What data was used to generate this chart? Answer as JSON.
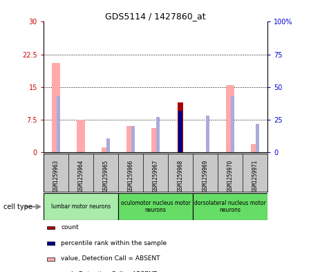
{
  "title": "GDS5114 / 1427860_at",
  "samples": [
    "GSM1259963",
    "GSM1259964",
    "GSM1259965",
    "GSM1259966",
    "GSM1259967",
    "GSM1259968",
    "GSM1259969",
    "GSM1259970",
    "GSM1259971"
  ],
  "value_absent": [
    20.5,
    7.5,
    1.2,
    6.0,
    5.5,
    null,
    null,
    15.5,
    2.0
  ],
  "rank_absent_pct": [
    43.0,
    null,
    10.5,
    20.0,
    27.0,
    null,
    28.0,
    43.0,
    22.0
  ],
  "count_value": [
    null,
    null,
    null,
    null,
    null,
    11.5,
    null,
    null,
    null
  ],
  "percentile_pct": [
    null,
    null,
    null,
    null,
    null,
    32.0,
    null,
    null,
    null
  ],
  "ylim_left": [
    0,
    30
  ],
  "ylim_right": [
    0,
    100
  ],
  "yticks_left": [
    0,
    7.5,
    15,
    22.5,
    30
  ],
  "yticks_right": [
    0,
    25,
    50,
    75,
    100
  ],
  "ytick_labels_left": [
    "0",
    "7.5",
    "15",
    "22.5",
    "30"
  ],
  "ytick_labels_right": [
    "0",
    "25",
    "50",
    "75",
    "100%"
  ],
  "cell_groups": [
    {
      "label": "lumbar motor neurons",
      "start": 0,
      "end": 3,
      "color": "#aaeaaa"
    },
    {
      "label": "oculomotor nucleus motor\nneurons",
      "start": 3,
      "end": 6,
      "color": "#66dd66"
    },
    {
      "label": "dorsolateral nucleus motor\nneurons",
      "start": 6,
      "end": 9,
      "color": "#66dd66"
    }
  ],
  "color_value_absent": "#ffaaaa",
  "color_rank_absent": "#aaaadd",
  "color_count": "#aa0000",
  "color_percentile": "#000088",
  "background_color": "#ffffff",
  "axis_left_color": "#cc0000",
  "axis_right_color": "#0000cc",
  "gray_bg": "#c8c8c8"
}
